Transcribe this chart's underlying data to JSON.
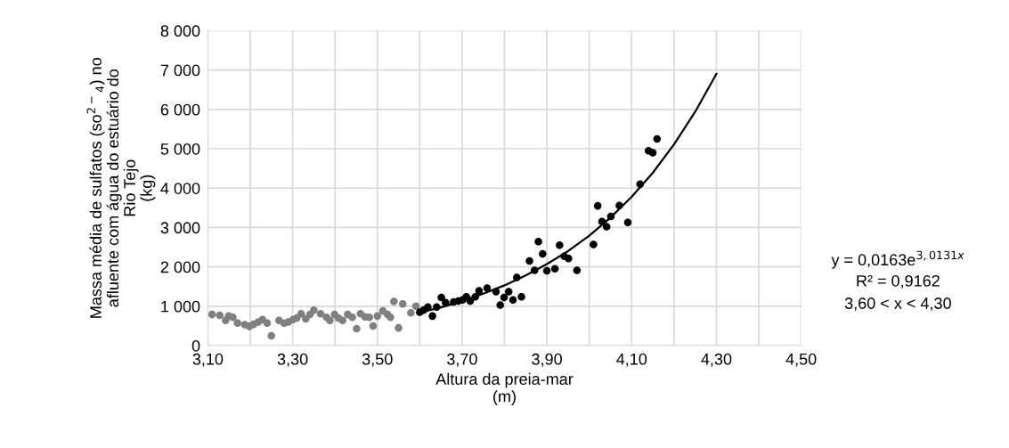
{
  "chart_data": {
    "type": "scatter",
    "xlabel": "Altura da preia-mar\n(m)",
    "ylabel": "Massa média de sulfatos (so$^{2−}$$_{4}$) no\nafluente com água do estuário do\nRio Tejo\n(kg)",
    "xlim": [
      3.1,
      4.5
    ],
    "xticks": [
      {
        "value": 3.1,
        "label": "3,10"
      },
      {
        "value": 3.2,
        "label": null
      },
      {
        "value": 3.3,
        "label": "3,30"
      },
      {
        "value": 3.4,
        "label": null
      },
      {
        "value": 3.5,
        "label": "3,50"
      },
      {
        "value": 3.6,
        "label": null
      },
      {
        "value": 3.7,
        "label": "3,70"
      },
      {
        "value": 3.8,
        "label": null
      },
      {
        "value": 3.9,
        "label": "3,90"
      },
      {
        "value": 4.0,
        "label": null
      },
      {
        "value": 4.1,
        "label": "4,10"
      },
      {
        "value": 4.2,
        "label": null
      },
      {
        "value": 4.3,
        "label": "4,30"
      },
      {
        "value": 4.4,
        "label": null
      },
      {
        "value": 4.5,
        "label": "4,50"
      }
    ],
    "ylim": [
      0,
      8000
    ],
    "yticks": [
      0,
      {
        "value": 1000,
        "label": "1 000"
      },
      {
        "value": 2000,
        "label": "2 000"
      },
      {
        "value": 3000,
        "label": "3 000"
      },
      {
        "value": 4000,
        "label": "4 000"
      },
      {
        "value": 5000,
        "label": "5 000"
      },
      {
        "value": 6000,
        "label": "6 000"
      },
      {
        "value": 7000,
        "label": "7 000"
      },
      {
        "value": 8000,
        "label": "8 000"
      }
    ],
    "grid": true,
    "legend": false,
    "marker": "circle",
    "annotations": [
      "y = 0,0163e$^{3,0131x}$",
      "R² = 0,9162",
      "3,60 < x < 4,30"
    ],
    "series": [
      {
        "color": "#808080",
        "x": [
          3.11,
          3.128,
          3.142,
          3.149,
          3.159,
          3.17,
          3.187,
          3.198,
          3.208,
          3.219,
          3.229,
          3.24,
          3.25,
          3.268,
          3.28,
          3.29,
          3.301,
          3.31,
          3.32,
          3.331,
          3.341,
          3.35,
          3.366,
          3.38,
          3.388,
          3.399,
          3.408,
          3.418,
          3.43,
          3.441,
          3.451,
          3.46,
          3.471,
          3.481,
          3.49,
          3.5,
          3.513,
          3.524,
          3.531,
          3.539,
          3.55,
          3.56,
          3.579,
          3.591
        ],
        "values": [
          790,
          770,
          640,
          750,
          720,
          570,
          530,
          490,
          540,
          600,
          660,
          570,
          250,
          640,
          570,
          600,
          660,
          700,
          810,
          680,
          790,
          900,
          810,
          720,
          640,
          790,
          700,
          640,
          790,
          720,
          430,
          810,
          730,
          720,
          500,
          750,
          880,
          790,
          720,
          1120,
          450,
          1060,
          830,
          1000
        ]
      },
      {
        "color": "#000000",
        "x": [
          3.6,
          3.609,
          3.619,
          3.63,
          3.64,
          3.651,
          3.661,
          3.68,
          3.691,
          3.701,
          3.71,
          3.719,
          3.731,
          3.74,
          3.759,
          3.78,
          3.79,
          3.799,
          3.81,
          3.82,
          3.829,
          3.84,
          3.859,
          3.871,
          3.88,
          3.89,
          3.9,
          3.919,
          3.93,
          3.941,
          3.951,
          3.971,
          4.01,
          4.02,
          4.03,
          4.041,
          4.051,
          4.071,
          4.091,
          4.12,
          4.14,
          4.15,
          4.16
        ],
        "values": [
          850,
          900,
          980,
          750,
          980,
          1220,
          1090,
          1110,
          1130,
          1160,
          1240,
          1130,
          1240,
          1390,
          1460,
          1370,
          1030,
          1220,
          1370,
          1160,
          1730,
          1240,
          2150,
          1910,
          2640,
          2330,
          1900,
          1950,
          2550,
          2270,
          2210,
          1910,
          2570,
          3550,
          3150,
          3020,
          3280,
          3560,
          3130,
          4100,
          4950,
          4900,
          5250
        ]
      },
      {
        "type": "line",
        "color": "#000000",
        "marker": "none",
        "x": [
          3.6,
          3.65,
          3.7,
          3.75,
          3.8,
          3.85,
          3.9,
          3.95,
          4.0,
          4.05,
          4.1,
          4.15,
          4.2,
          4.25,
          4.3
        ],
        "values": [
          840,
          970,
          1130,
          1320,
          1530,
          1780,
          2070,
          2400,
          2790,
          3250,
          3780,
          4390,
          5110,
          5940,
          6900
        ]
      }
    ]
  }
}
